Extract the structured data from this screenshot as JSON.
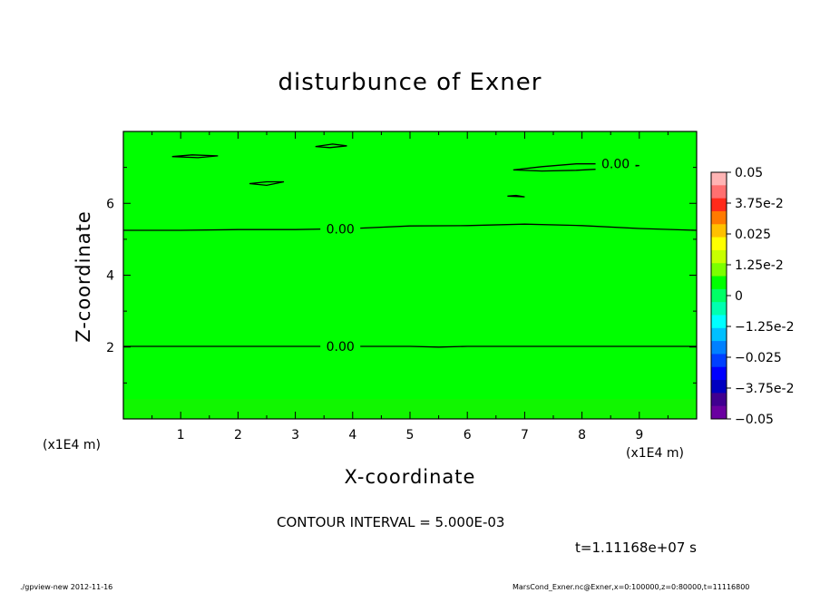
{
  "chart_data": {
    "type": "heatmap",
    "title": "disturbunce of Exner",
    "xlabel": "X-coordinate",
    "ylabel": "Z-coordinate",
    "x_unit_label": "(x1E4 m)",
    "y_unit_label": "(x1E4 m)",
    "xlim": [
      0,
      10
    ],
    "ylim": [
      0,
      8
    ],
    "x_ticks": [
      1,
      2,
      3,
      4,
      5,
      6,
      7,
      8,
      9
    ],
    "y_ticks": [
      2,
      4,
      6
    ],
    "contour_interval": "CONTOUR INTERVAL = 5.000E-03",
    "time": "t=1.11168e+07 s",
    "colorbar": {
      "labels": [
        "0.05",
        "3.75e-2",
        "0.025",
        "1.25e-2",
        "0",
        "−1.25e-2",
        "−0.025",
        "−3.75e-2",
        "−0.05"
      ],
      "values": [
        0.05,
        0.0375,
        0.025,
        0.0125,
        0,
        -0.0125,
        -0.025,
        -0.0375,
        -0.05
      ],
      "colors": [
        "#ffb4b4",
        "#ff7070",
        "#ff2a1a",
        "#ff7a00",
        "#ffc000",
        "#ffff00",
        "#c8ff00",
        "#7cff00",
        "#00ff00",
        "#00ff66",
        "#00ffb0",
        "#00ffff",
        "#00c0ff",
        "#0080ff",
        "#0040ff",
        "#0000ff",
        "#0000c0",
        "#400090",
        "#6a00a0"
      ]
    },
    "field_color": "#00ff00",
    "contours": [
      {
        "label": "0.00",
        "points": [
          [
            0,
            5.25
          ],
          [
            1,
            5.25
          ],
          [
            2,
            5.27
          ],
          [
            3,
            5.27
          ],
          [
            4,
            5.3
          ],
          [
            5,
            5.37
          ],
          [
            6,
            5.38
          ],
          [
            7,
            5.42
          ],
          [
            8,
            5.38
          ],
          [
            9,
            5.3
          ],
          [
            10,
            5.25
          ]
        ],
        "label_x": 3.5
      },
      {
        "label": "0.00",
        "points": [
          [
            0,
            2.02
          ],
          [
            1,
            2.02
          ],
          [
            2,
            2.02
          ],
          [
            3,
            2.02
          ],
          [
            4,
            2.02
          ],
          [
            5,
            2.02
          ],
          [
            5.5,
            2.0
          ],
          [
            6,
            2.02
          ],
          [
            7,
            2.02
          ],
          [
            8,
            2.02
          ],
          [
            9,
            2.02
          ],
          [
            10,
            2.02
          ]
        ],
        "label_x": 3.5
      },
      {
        "label": "0.00",
        "points": [
          [
            6.8,
            6.93
          ],
          [
            7.3,
            7.02
          ],
          [
            7.9,
            7.1
          ],
          [
            8.4,
            7.1
          ],
          [
            9.0,
            7.05
          ],
          [
            8.5,
            6.97
          ],
          [
            7.9,
            6.92
          ],
          [
            7.3,
            6.9
          ],
          [
            6.8,
            6.93
          ]
        ],
        "label_x": 8.3
      },
      {
        "label": "",
        "points": [
          [
            0.85,
            7.3
          ],
          [
            1.2,
            7.35
          ],
          [
            1.65,
            7.32
          ],
          [
            1.3,
            7.27
          ],
          [
            0.85,
            7.3
          ]
        ],
        "label_x": null
      },
      {
        "label": "",
        "points": [
          [
            3.35,
            7.58
          ],
          [
            3.65,
            7.65
          ],
          [
            3.9,
            7.6
          ],
          [
            3.6,
            7.55
          ],
          [
            3.35,
            7.58
          ]
        ],
        "label_x": null
      },
      {
        "label": "",
        "points": [
          [
            2.2,
            6.55
          ],
          [
            2.5,
            6.6
          ],
          [
            2.8,
            6.6
          ],
          [
            2.5,
            6.5
          ],
          [
            2.2,
            6.55
          ]
        ],
        "label_x": null
      },
      {
        "label": "",
        "points": [
          [
            6.7,
            6.2
          ],
          [
            6.85,
            6.22
          ],
          [
            7.0,
            6.18
          ],
          [
            6.7,
            6.2
          ]
        ],
        "label_x": null
      }
    ]
  },
  "footer": {
    "left": "./gpview-new   2012-11-16",
    "right": "MarsCond_Exner.nc@Exner,x=0:100000,z=0:80000,t=11116800"
  }
}
